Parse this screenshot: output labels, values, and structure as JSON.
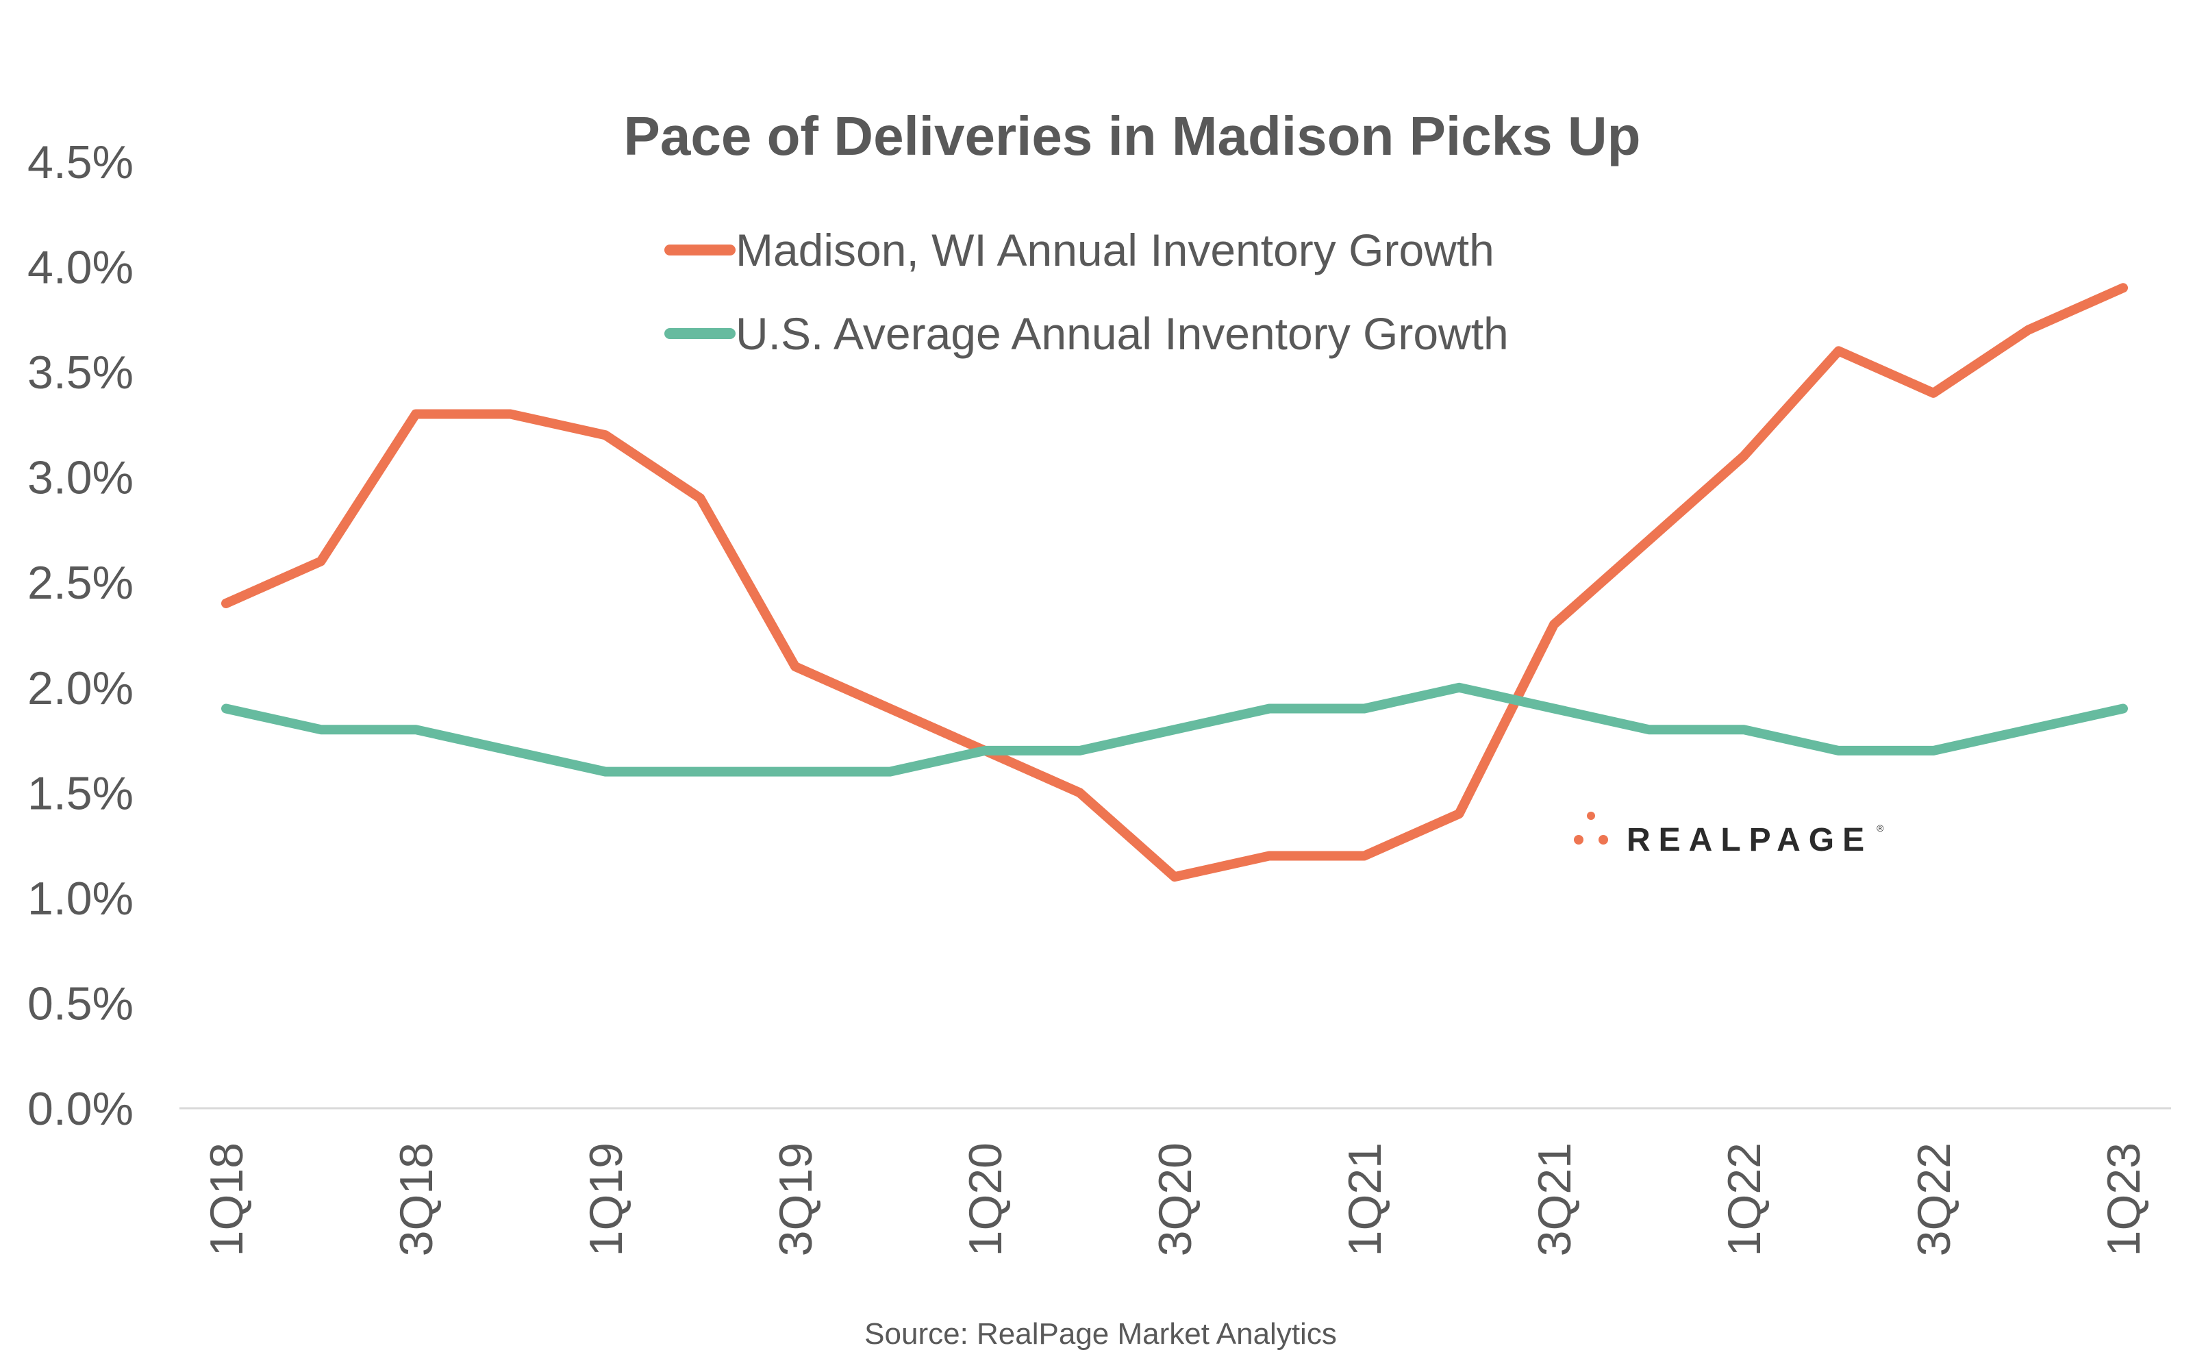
{
  "chart_data": {
    "type": "line",
    "title": "Pace of Deliveries in Madison Picks Up",
    "xlabel": "",
    "ylabel": "",
    "x": [
      "1Q18",
      "2Q18",
      "3Q18",
      "4Q18",
      "1Q19",
      "2Q19",
      "3Q19",
      "4Q19",
      "1Q20",
      "2Q20",
      "3Q20",
      "4Q20",
      "1Q21",
      "2Q21",
      "3Q21",
      "4Q21",
      "1Q22",
      "2Q22",
      "3Q22",
      "4Q22",
      "1Q23"
    ],
    "x_tick_labels": [
      "1Q18",
      "3Q18",
      "1Q19",
      "3Q19",
      "1Q20",
      "3Q20",
      "1Q21",
      "3Q21",
      "1Q22",
      "3Q22",
      "1Q23"
    ],
    "ylim": [
      0,
      4.5
    ],
    "y_ticks": [
      0,
      0.5,
      1.0,
      1.5,
      2.0,
      2.5,
      3.0,
      3.5,
      4.0,
      4.5
    ],
    "y_tick_labels": [
      "0.0%",
      "0.5%",
      "1.0%",
      "1.5%",
      "2.0%",
      "2.5%",
      "3.0%",
      "3.5%",
      "4.0%",
      "4.5%"
    ],
    "grid": false,
    "legend_position": "top-center",
    "series": [
      {
        "name": "Madison, WI Annual Inventory Growth",
        "color": "#EE7551",
        "values": [
          2.4,
          2.6,
          3.3,
          3.3,
          3.2,
          2.9,
          2.1,
          1.9,
          1.7,
          1.5,
          1.1,
          1.2,
          1.2,
          1.4,
          2.3,
          2.7,
          3.1,
          3.6,
          3.4,
          3.7,
          3.9
        ]
      },
      {
        "name": "U.S. Average Annual Inventory Growth",
        "color": "#66BB9F",
        "values": [
          1.9,
          1.8,
          1.8,
          1.7,
          1.6,
          1.6,
          1.6,
          1.6,
          1.7,
          1.7,
          1.8,
          1.9,
          1.9,
          2.0,
          1.9,
          1.8,
          1.8,
          1.7,
          1.7,
          1.8,
          1.9
        ]
      }
    ],
    "source": "Source: RealPage Market Analytics"
  },
  "logo": {
    "text": "REALPAGE",
    "mark": "®",
    "dot_color": "#EE7551"
  }
}
